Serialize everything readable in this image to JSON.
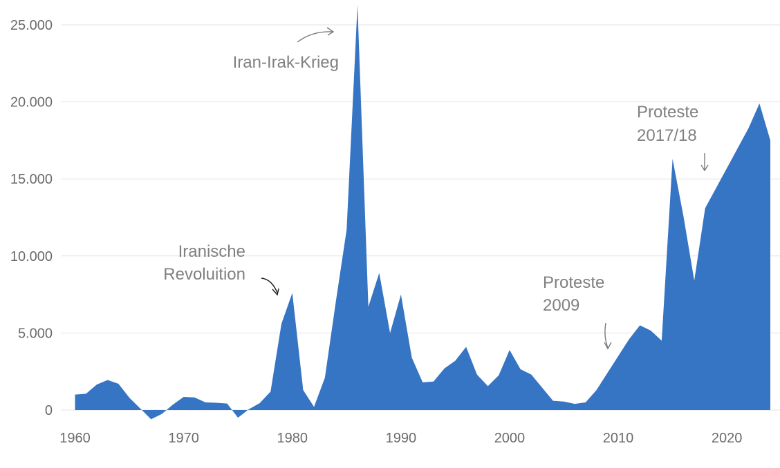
{
  "chart_data": {
    "type": "area",
    "title": "",
    "xlabel": "",
    "ylabel": "",
    "xlim": [
      1960,
      2024
    ],
    "ylim": [
      0,
      25000
    ],
    "y_ticks": [
      0,
      5000,
      10000,
      15000,
      20000,
      25000
    ],
    "y_tick_labels": [
      "0",
      "5.000",
      "10.000",
      "15.000",
      "20.000",
      "25.000"
    ],
    "x_ticks": [
      1960,
      1970,
      1980,
      1990,
      2000,
      2010,
      2020
    ],
    "x_tick_labels": [
      "1960",
      "1970",
      "1980",
      "1990",
      "2000",
      "2010",
      "2020"
    ],
    "grid": true,
    "legend": "none",
    "color": "#3674c4",
    "x": [
      1960,
      1961,
      1962,
      1963,
      1964,
      1965,
      1966,
      1967,
      1968,
      1969,
      1970,
      1971,
      1972,
      1973,
      1974,
      1975,
      1976,
      1977,
      1978,
      1979,
      1980,
      1981,
      1982,
      1983,
      1984,
      1985,
      1986,
      1987,
      1988,
      1989,
      1990,
      1991,
      1992,
      1993,
      1994,
      1995,
      1996,
      1997,
      1998,
      1999,
      2000,
      2001,
      2002,
      2003,
      2004,
      2005,
      2006,
      2007,
      2008,
      2009,
      2010,
      2011,
      2012,
      2013,
      2014,
      2015,
      2016,
      2017,
      2018,
      2019,
      2020,
      2021,
      2022,
      2023,
      2024
    ],
    "values": [
      1000,
      1050,
      1650,
      1950,
      1700,
      800,
      100,
      -600,
      -250,
      350,
      850,
      820,
      500,
      470,
      420,
      -500,
      50,
      450,
      1200,
      5600,
      7600,
      1300,
      200,
      2100,
      7000,
      11700,
      26300,
      6700,
      8900,
      5000,
      7500,
      3400,
      1800,
      1850,
      2700,
      3200,
      4100,
      2300,
      1550,
      2250,
      3900,
      2650,
      2300,
      1450,
      600,
      550,
      400,
      500,
      1300,
      2400,
      3500,
      4600,
      5500,
      5150,
      4500,
      16300,
      12600,
      8400,
      13100,
      14400,
      15700,
      17000,
      18300,
      19900,
      17500
    ],
    "annotations": [
      {
        "lines": [
          "Iranische",
          "Revoluition"
        ],
        "year": 1979
      },
      {
        "lines": [
          "Iran-Irak-Krieg"
        ],
        "year": 1986
      },
      {
        "lines": [
          "Proteste",
          "2009"
        ],
        "year": 2009
      },
      {
        "lines": [
          "Proteste",
          "2017/18"
        ],
        "year": 2018
      }
    ]
  }
}
